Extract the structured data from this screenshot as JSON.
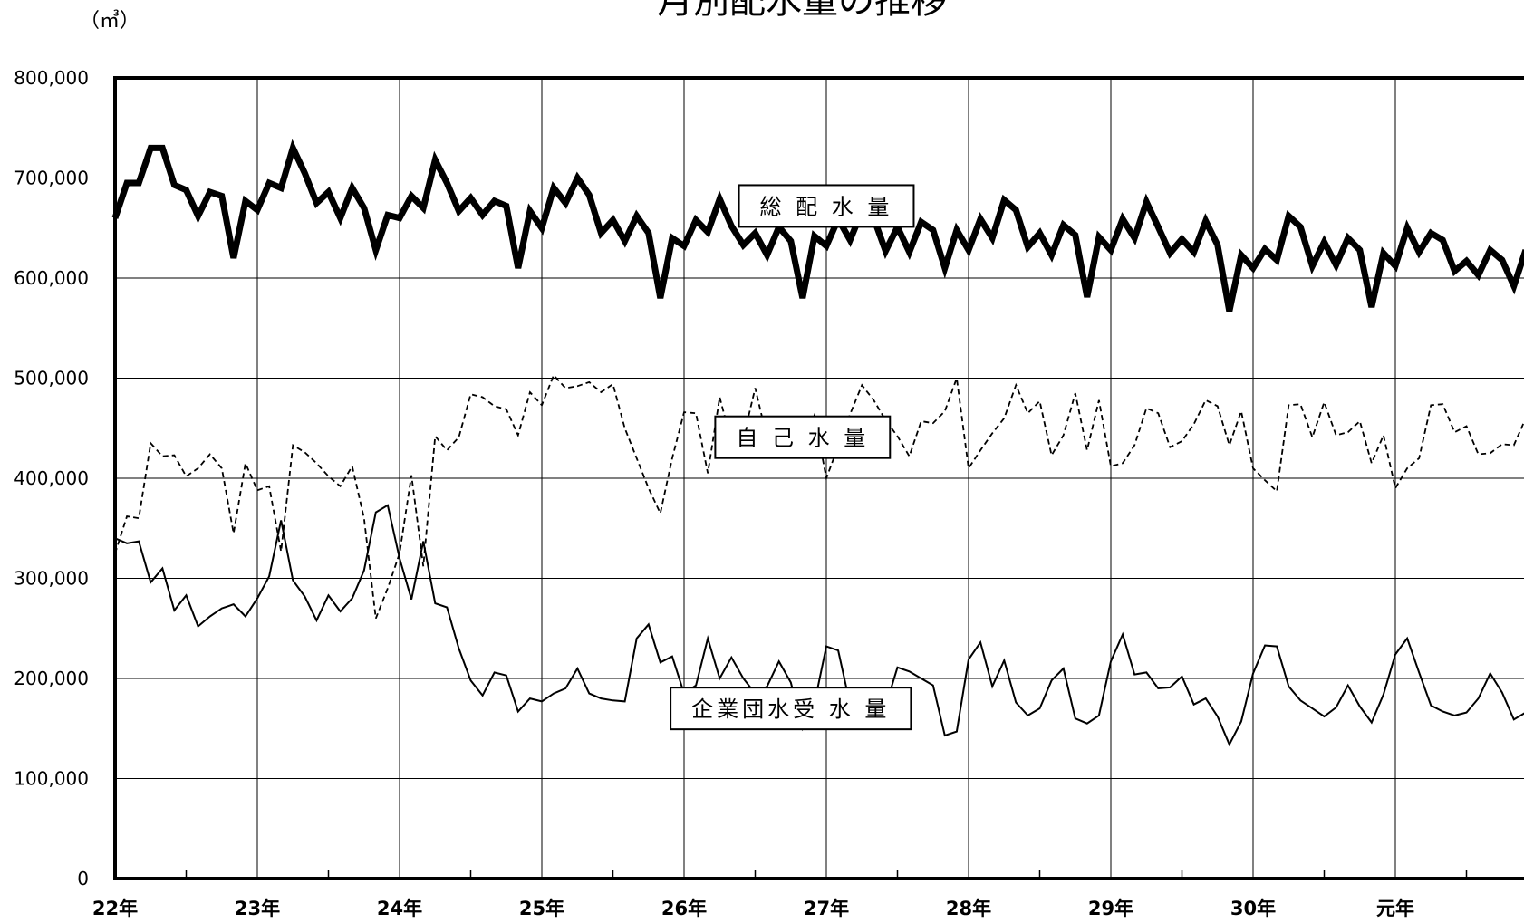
{
  "chart_data": {
    "type": "line",
    "title": "月別配水量の推移",
    "unit": "（㎥）",
    "ylim": [
      0,
      800000
    ],
    "y_ticks": [
      0,
      100000,
      200000,
      300000,
      400000,
      500000,
      600000,
      700000,
      800000
    ],
    "y_tick_labels": [
      "0",
      "100,000",
      "200,000",
      "300,000",
      "400,000",
      "500,000",
      "600,000",
      "700,000",
      "800,000"
    ],
    "x_tick_labels": [
      "22年",
      "23年",
      "24年",
      "25年",
      "26年",
      "27年",
      "28年",
      "29年",
      "30年",
      "元年"
    ],
    "months_per_year": 12,
    "grid": true,
    "series": [
      {
        "name": "総 配 水 量",
        "style": "thick",
        "values": [
          660000,
          695000,
          695000,
          730000,
          730000,
          693000,
          688000,
          662000,
          686000,
          682000,
          620000,
          677000,
          668000,
          695000,
          690000,
          730000,
          705000,
          675000,
          686000,
          660000,
          690000,
          670000,
          628000,
          663000,
          660000,
          682000,
          670000,
          718000,
          695000,
          667000,
          680000,
          663000,
          677000,
          672000,
          610000,
          667000,
          650000,
          690000,
          675000,
          700000,
          683000,
          645000,
          658000,
          637000,
          662000,
          645000,
          580000,
          640000,
          632000,
          658000,
          646000,
          679000,
          652000,
          633000,
          645000,
          623000,
          651000,
          637000,
          580000,
          642000,
          632000,
          659000,
          638000,
          667000,
          660000,
          627000,
          651000,
          626000,
          656000,
          648000,
          610000,
          648000,
          628000,
          659000,
          640000,
          678000,
          668000,
          631000,
          645000,
          623000,
          653000,
          643000,
          581000,
          641000,
          628000,
          659000,
          640000,
          676000,
          651000,
          625000,
          639000,
          626000,
          657000,
          633000,
          567000,
          623000,
          610000,
          629000,
          618000,
          662000,
          651000,
          612000,
          636000,
          613000,
          640000,
          628000,
          571000,
          625000,
          612000,
          650000,
          626000,
          645000,
          638000,
          607000,
          617000,
          603000,
          628000,
          618000,
          592000,
          628000
        ]
      },
      {
        "name": "自 己 水 量",
        "style": "dashed",
        "values": [
          325000,
          362000,
          360000,
          435000,
          422000,
          423000,
          402000,
          410000,
          424000,
          410000,
          345000,
          415000,
          388000,
          392000,
          327000,
          433000,
          426000,
          415000,
          402000,
          392000,
          412000,
          360000,
          260000,
          290000,
          325000,
          403000,
          312000,
          442000,
          428000,
          441000,
          484000,
          481000,
          472000,
          469000,
          443000,
          486000,
          473000,
          503000,
          490000,
          492000,
          496000,
          486000,
          494000,
          450000,
          420000,
          390000,
          365000,
          420000,
          466000,
          465000,
          405000,
          481000,
          436000,
          440000,
          490000,
          440000,
          435000,
          443000,
          433000,
          463000,
          400000,
          432000,
          464000,
          493000,
          478000,
          458000,
          442000,
          422000,
          457000,
          455000,
          467000,
          500000,
          410000,
          428000,
          445000,
          460000,
          493000,
          465000,
          477000,
          423000,
          443000,
          485000,
          428000,
          478000,
          412000,
          415000,
          433000,
          470000,
          465000,
          431000,
          437000,
          454000,
          478000,
          472000,
          433000,
          467000,
          410000,
          398000,
          387000,
          473000,
          474000,
          441000,
          476000,
          443000,
          446000,
          457000,
          415000,
          443000,
          390000,
          410000,
          420000,
          473000,
          474000,
          446000,
          452000,
          424000,
          425000,
          434000,
          433000,
          460000
        ]
      },
      {
        "name": "企業団水受 水 量",
        "style": "thin",
        "values": [
          340000,
          335000,
          337000,
          296000,
          310000,
          268000,
          283000,
          252000,
          262000,
          270000,
          274000,
          262000,
          280000,
          302000,
          358000,
          298000,
          282000,
          258000,
          283000,
          267000,
          280000,
          308000,
          366000,
          373000,
          320000,
          279000,
          337000,
          275000,
          271000,
          230000,
          198000,
          183000,
          206000,
          203000,
          167000,
          180000,
          177000,
          185000,
          190000,
          210000,
          185000,
          180000,
          178000,
          177000,
          240000,
          254000,
          216000,
          222000,
          185000,
          193000,
          240000,
          200000,
          221000,
          200000,
          185000,
          192000,
          217000,
          196000,
          150000,
          175000,
          232000,
          228000,
          174000,
          174000,
          181000,
          172000,
          211000,
          207000,
          200000,
          193000,
          143000,
          147000,
          219000,
          236000,
          192000,
          218000,
          176000,
          163000,
          170000,
          198000,
          210000,
          160000,
          155000,
          163000,
          217000,
          244000,
          204000,
          206000,
          190000,
          191000,
          202000,
          174000,
          180000,
          162000,
          134000,
          157000,
          205000,
          233000,
          232000,
          192000,
          178000,
          170000,
          162000,
          171000,
          193000,
          172000,
          156000,
          184000,
          224000,
          240000,
          206000,
          173000,
          167000,
          163000,
          166000,
          180000,
          205000,
          186000,
          159000,
          166000
        ]
      }
    ],
    "label_boxes": [
      {
        "series": "総 配 水 量",
        "x_month": 60,
        "y_value": 672000
      },
      {
        "series": "自 己 水 量",
        "x_month": 58,
        "y_value": 441000
      },
      {
        "series": "企業団水受 水 量",
        "x_month": 57,
        "y_value": 170000
      }
    ]
  }
}
